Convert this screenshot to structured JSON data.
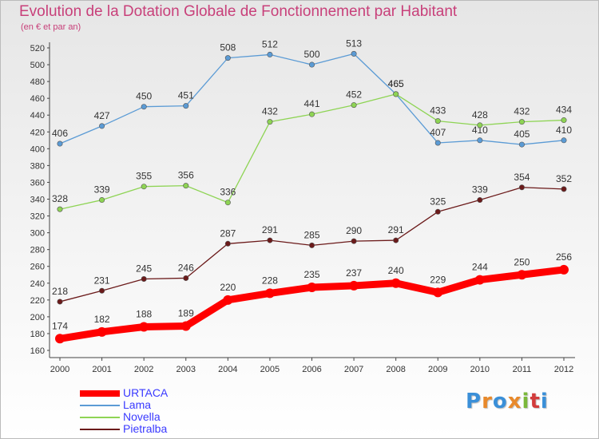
{
  "header": {
    "title": "Evolution de la Dotation Globale de Fonctionnement par Habitant",
    "subtitle": "(en € et par an)"
  },
  "logo": {
    "text": "Proxiti",
    "colors": [
      "#3a8fd8",
      "#e8892b",
      "#3a8fd8",
      "#e8892b",
      "#7bb83a",
      "#d23c3c",
      "#3a8fd8"
    ]
  },
  "chart_data": {
    "type": "line",
    "categories": [
      "2000",
      "2001",
      "2002",
      "2003",
      "2004",
      "2005",
      "2006",
      "2007",
      "2008",
      "2009",
      "2010",
      "2011",
      "2012"
    ],
    "ylim": [
      160,
      520
    ],
    "yticks": [
      160,
      180,
      200,
      220,
      240,
      260,
      280,
      300,
      320,
      340,
      360,
      380,
      400,
      420,
      440,
      460,
      480,
      500,
      520
    ],
    "grid": false,
    "legend_position": "bottom-left",
    "series": [
      {
        "name": "URTACA",
        "color": "#ff0000",
        "thick": true,
        "values": [
          174,
          182,
          188,
          189,
          220,
          228,
          235,
          237,
          240,
          229,
          244,
          250,
          256
        ]
      },
      {
        "name": "Lama",
        "color": "#5b9bd5",
        "thick": false,
        "values": [
          406,
          427,
          450,
          451,
          508,
          512,
          500,
          513,
          465,
          407,
          410,
          405,
          410
        ]
      },
      {
        "name": "Novella",
        "color": "#8ed454",
        "thick": false,
        "values": [
          328,
          339,
          355,
          356,
          336,
          432,
          441,
          452,
          465,
          433,
          428,
          432,
          434
        ]
      },
      {
        "name": "Pietralba",
        "color": "#6b1a1a",
        "thick": false,
        "values": [
          218,
          231,
          245,
          246,
          287,
          291,
          285,
          290,
          291,
          325,
          339,
          354,
          352
        ]
      }
    ]
  }
}
